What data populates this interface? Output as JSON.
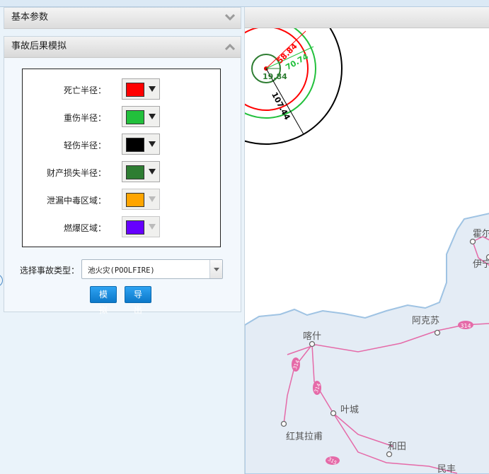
{
  "panels": {
    "basic": {
      "title": "基本参数"
    },
    "sim": {
      "title": "事故后果模拟",
      "legend": [
        {
          "label": "死亡半径：",
          "color": "#ff0000",
          "enabled": true
        },
        {
          "label": "重伤半径：",
          "color": "#22c03c",
          "enabled": true
        },
        {
          "label": "轻伤半径：",
          "color": "#000000",
          "enabled": true
        },
        {
          "label": "财产损失半径：",
          "color": "#2e7d32",
          "enabled": true
        },
        {
          "label": "泄漏中毒区域：",
          "color": "#ffa500",
          "enabled": false
        },
        {
          "label": "燃爆区域：",
          "color": "#6600ff",
          "enabled": false
        }
      ],
      "accident_type_label": "选择事故类型：",
      "accident_type_value": "池火灾(POOLFIRE)",
      "simulate_button": "模拟",
      "export_button": "导出"
    }
  },
  "map": {
    "radii": {
      "r1": "19.84",
      "r2": "58.84",
      "r3": "70.74",
      "r4": "107.44"
    },
    "places": [
      "霍尔",
      "伊宁",
      "阿克苏",
      "喀什",
      "叶城",
      "红其拉甫",
      "和田",
      "民丰"
    ],
    "road_labels": [
      "314",
      "314",
      "314",
      "315"
    ],
    "colors": {
      "red": "#ff0000",
      "green": "#22c03c",
      "dark_green": "#2e7d32",
      "black": "#000000",
      "land": "#e4ecf5",
      "border": "#9fc3e3",
      "road": "#e56aa8"
    }
  }
}
